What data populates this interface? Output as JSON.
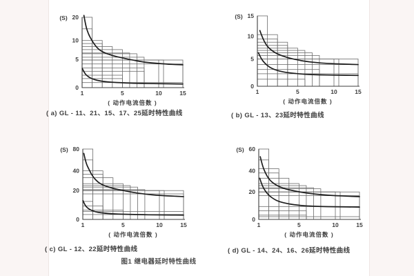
{
  "page": {
    "figure_caption": "图1 继电器延时特性曲线"
  },
  "chart_data": [
    {
      "type": "line",
      "title": "( a) GL - 11、21、15、17、25延时特性曲线",
      "y_unit": "(S)",
      "x_label": "( 动作电流倍数 )",
      "xlim": [
        1,
        15
      ],
      "ylim": [
        0,
        20
      ],
      "grid": "nested setting-band rectangles anchored at x=1,y=0",
      "x_ticks": [
        {
          "v": 1,
          "f": 0,
          "label": "1"
        },
        {
          "v": 5,
          "f": 0.4,
          "label": "5"
        },
        {
          "v": 10,
          "f": 0.76,
          "label": "10"
        },
        {
          "v": 15,
          "f": 1,
          "label": "15"
        }
      ],
      "y_ticks": [
        {
          "v": 0,
          "f": 0,
          "label": "0"
        },
        {
          "v": 5,
          "f": 0.4,
          "label": "5"
        },
        {
          "v": 10,
          "f": 0.67,
          "label": "10"
        },
        {
          "v": 20,
          "f": 1,
          "label": "20"
        }
      ],
      "boxes": [
        [
          2,
          20
        ],
        [
          2,
          15
        ],
        [
          3,
          10
        ],
        [
          3,
          9.2
        ],
        [
          4,
          8.4
        ],
        [
          5,
          7.6
        ],
        [
          6,
          6.7
        ],
        [
          7,
          6.5
        ],
        [
          8,
          5.6
        ],
        [
          10,
          4.9
        ],
        [
          11,
          4.9
        ],
        [
          15,
          4.9
        ],
        [
          15,
          4.2
        ],
        [
          8,
          3.5
        ],
        [
          8,
          2.9
        ],
        [
          5,
          2.2
        ],
        [
          5,
          1.6
        ],
        [
          15,
          0.9
        ]
      ],
      "series": [
        {
          "name": "upper_curve",
          "points": [
            [
              1.18,
              20.8
            ],
            [
              1.35,
              16.5
            ],
            [
              1.6,
              13
            ],
            [
              2,
              9.8
            ],
            [
              2.5,
              8
            ],
            [
              3,
              7
            ],
            [
              4,
              6
            ],
            [
              5,
              5.4
            ],
            [
              6,
              5
            ],
            [
              8,
              4.5
            ],
            [
              10,
              4.3
            ],
            [
              12,
              4.15
            ],
            [
              15,
              4.05
            ]
          ]
        },
        {
          "name": "lower_curve",
          "points": [
            [
              1.02,
              3.4
            ],
            [
              1.2,
              2.7
            ],
            [
              1.5,
              2.05
            ],
            [
              2,
              1.55
            ],
            [
              2.5,
              1.3
            ],
            [
              3,
              1.12
            ],
            [
              4,
              0.95
            ],
            [
              5,
              0.86
            ],
            [
              7,
              0.76
            ],
            [
              10,
              0.7
            ],
            [
              15,
              0.64
            ]
          ]
        }
      ]
    },
    {
      "type": "line",
      "title": "( b) GL - 13、23延时特性曲线",
      "y_unit": "(S)",
      "x_label": "( 动作电流倍数 )",
      "xlim": [
        1,
        15
      ],
      "ylim": [
        0,
        15
      ],
      "grid": "nested setting-band rectangles anchored at x=1,y=0",
      "x_ticks": [
        {
          "v": 1,
          "f": 0,
          "label": "1"
        },
        {
          "v": 5,
          "f": 0.4,
          "label": "5"
        },
        {
          "v": 10,
          "f": 0.76,
          "label": "10"
        },
        {
          "v": 15,
          "f": 1,
          "label": "15"
        }
      ],
      "y_ticks": [
        {
          "v": 0,
          "f": 0,
          "label": "0"
        },
        {
          "v": 5,
          "f": 0.385,
          "label": "5"
        },
        {
          "v": 10,
          "f": 0.71,
          "label": "10"
        },
        {
          "v": 15,
          "f": 1,
          "label": "15"
        }
      ],
      "boxes": [
        [
          2,
          15
        ],
        [
          3,
          10.4
        ],
        [
          3,
          9.4
        ],
        [
          4,
          8.7
        ],
        [
          4,
          8.0
        ],
        [
          5,
          7.4
        ],
        [
          6,
          6.9
        ],
        [
          7,
          6.4
        ],
        [
          8,
          5.8
        ],
        [
          10,
          5.05
        ],
        [
          11,
          5.05
        ],
        [
          15,
          5.05
        ],
        [
          15,
          4.0
        ],
        [
          8,
          3.1
        ],
        [
          15,
          2.3
        ],
        [
          6,
          1.3
        ]
      ],
      "series": [
        {
          "name": "upper_curve",
          "points": [
            [
              1.25,
              11.4
            ],
            [
              1.5,
              9.7
            ],
            [
              1.9,
              8
            ],
            [
              2.4,
              6.9
            ],
            [
              3,
              6.1
            ],
            [
              4,
              5.3
            ],
            [
              5,
              4.85
            ],
            [
              6,
              4.6
            ],
            [
              8,
              4.3
            ],
            [
              10,
              4.15
            ],
            [
              15,
              4.0
            ]
          ]
        },
        {
          "name": "lower_curve",
          "points": [
            [
              1.1,
              6.4
            ],
            [
              1.35,
              5.2
            ],
            [
              1.7,
              4.3
            ],
            [
              2.2,
              3.5
            ],
            [
              2.8,
              3.0
            ],
            [
              3.5,
              2.65
            ],
            [
              4.5,
              2.4
            ],
            [
              6,
              2.2
            ],
            [
              8,
              2.1
            ],
            [
              10,
              2.05
            ],
            [
              15,
              2.0
            ]
          ]
        }
      ]
    },
    {
      "type": "line",
      "title": "( c) GL - 12、22延时特性曲线",
      "y_unit": "(S)",
      "x_label": "( 动作电流倍数 )",
      "xlim": [
        1,
        15
      ],
      "ylim": [
        0,
        80
      ],
      "grid": "nested setting-band rectangles anchored at x=1,y=0",
      "x_ticks": [
        {
          "v": 1,
          "f": 0,
          "label": "1"
        },
        {
          "v": 5,
          "f": 0.4,
          "label": "5"
        },
        {
          "v": 10,
          "f": 0.76,
          "label": "10"
        },
        {
          "v": 15,
          "f": 1,
          "label": "15"
        }
      ],
      "y_ticks": [
        {
          "v": 0,
          "f": 0,
          "label": "0"
        },
        {
          "v": 20,
          "f": 0.41,
          "label": "20"
        },
        {
          "v": 40,
          "f": 0.69,
          "label": "40"
        },
        {
          "v": 80,
          "f": 1,
          "label": "80"
        }
      ],
      "boxes": [
        [
          2,
          80
        ],
        [
          2,
          60
        ],
        [
          3,
          40
        ],
        [
          3,
          36.5
        ],
        [
          4,
          33
        ],
        [
          5,
          27
        ],
        [
          6,
          25
        ],
        [
          7,
          23.5
        ],
        [
          8,
          21
        ],
        [
          10,
          20
        ],
        [
          11,
          20
        ],
        [
          15,
          20
        ],
        [
          15,
          17.7
        ],
        [
          2,
          12.5
        ],
        [
          3,
          9.3
        ],
        [
          5,
          6.5
        ],
        [
          15,
          5.5
        ],
        [
          15,
          3.4
        ]
      ],
      "series": [
        {
          "name": "upper_curve",
          "points": [
            [
              1.1,
              72
            ],
            [
              1.3,
              55
            ],
            [
              1.6,
              43
            ],
            [
              2,
              34
            ],
            [
              2.5,
              28.5
            ],
            [
              3,
              25.5
            ],
            [
              4,
              22
            ],
            [
              5,
              20.2
            ],
            [
              6,
              19
            ],
            [
              8,
              17.5
            ],
            [
              10,
              16.6
            ],
            [
              15,
              15.8
            ]
          ]
        },
        {
          "name": "lower_curve",
          "points": [
            [
              1.02,
              13
            ],
            [
              1.2,
              10
            ],
            [
              1.5,
              7.6
            ],
            [
              2,
              5.8
            ],
            [
              2.5,
              4.9
            ],
            [
              3,
              4.4
            ],
            [
              4,
              3.85
            ],
            [
              5,
              3.6
            ],
            [
              7,
              3.3
            ],
            [
              10,
              3.1
            ],
            [
              15,
              3.0
            ]
          ]
        }
      ]
    },
    {
      "type": "line",
      "title": "( d) GL - 14、24、16、26延时特性曲线",
      "y_unit": "(S)",
      "x_label": "( 动作电流倍数 )",
      "xlim": [
        1,
        15
      ],
      "ylim": [
        0,
        60
      ],
      "grid": "nested setting-band rectangles anchored at x=1,y=0",
      "x_ticks": [
        {
          "v": 1,
          "f": 0,
          "label": "1"
        },
        {
          "v": 5,
          "f": 0.4,
          "label": "5"
        },
        {
          "v": 10,
          "f": 0.76,
          "label": "10"
        },
        {
          "v": 15,
          "f": 1,
          "label": "15"
        }
      ],
      "y_ticks": [
        {
          "v": 0,
          "f": 0,
          "label": "0"
        },
        {
          "v": 20,
          "f": 0.39,
          "label": "20"
        },
        {
          "v": 40,
          "f": 0.69,
          "label": "40"
        },
        {
          "v": 60,
          "f": 1,
          "label": "60"
        }
      ],
      "boxes": [
        [
          2,
          60
        ],
        [
          2,
          50
        ],
        [
          3,
          42
        ],
        [
          3,
          38
        ],
        [
          4,
          33
        ],
        [
          5,
          28
        ],
        [
          6,
          26
        ],
        [
          7,
          24
        ],
        [
          8,
          23
        ],
        [
          10,
          20
        ],
        [
          11,
          20
        ],
        [
          15,
          20
        ],
        [
          15,
          17.3
        ],
        [
          15,
          9.4
        ],
        [
          6,
          6.3
        ],
        [
          6,
          3.1
        ],
        [
          15,
          2.0
        ]
      ],
      "series": [
        {
          "name": "upper_curve",
          "points": [
            [
              1.15,
              53
            ],
            [
              1.35,
              45
            ],
            [
              1.7,
              37
            ],
            [
              2.1,
              31
            ],
            [
              2.7,
              26.5
            ],
            [
              3.5,
              23.2
            ],
            [
              4.5,
              21
            ],
            [
              6,
              19.2
            ],
            [
              8,
              18
            ],
            [
              10,
              17.3
            ],
            [
              15,
              16.6
            ]
          ]
        },
        {
          "name": "lower_curve",
          "points": [
            [
              1.1,
              33
            ],
            [
              1.3,
              27
            ],
            [
              1.6,
              21.5
            ],
            [
              2,
              17.5
            ],
            [
              2.5,
              14.8
            ],
            [
              3,
              13
            ],
            [
              4,
              11.2
            ],
            [
              5,
              10.3
            ],
            [
              6,
              9.8
            ],
            [
              8,
              9.4
            ],
            [
              10,
              9.2
            ],
            [
              15,
              9.0
            ]
          ]
        }
      ]
    }
  ],
  "colors": {
    "line": "#1d1d1d",
    "grid": "#6a6a6a",
    "text": "#3d3d3d",
    "page_margin": "#faf5f4"
  }
}
